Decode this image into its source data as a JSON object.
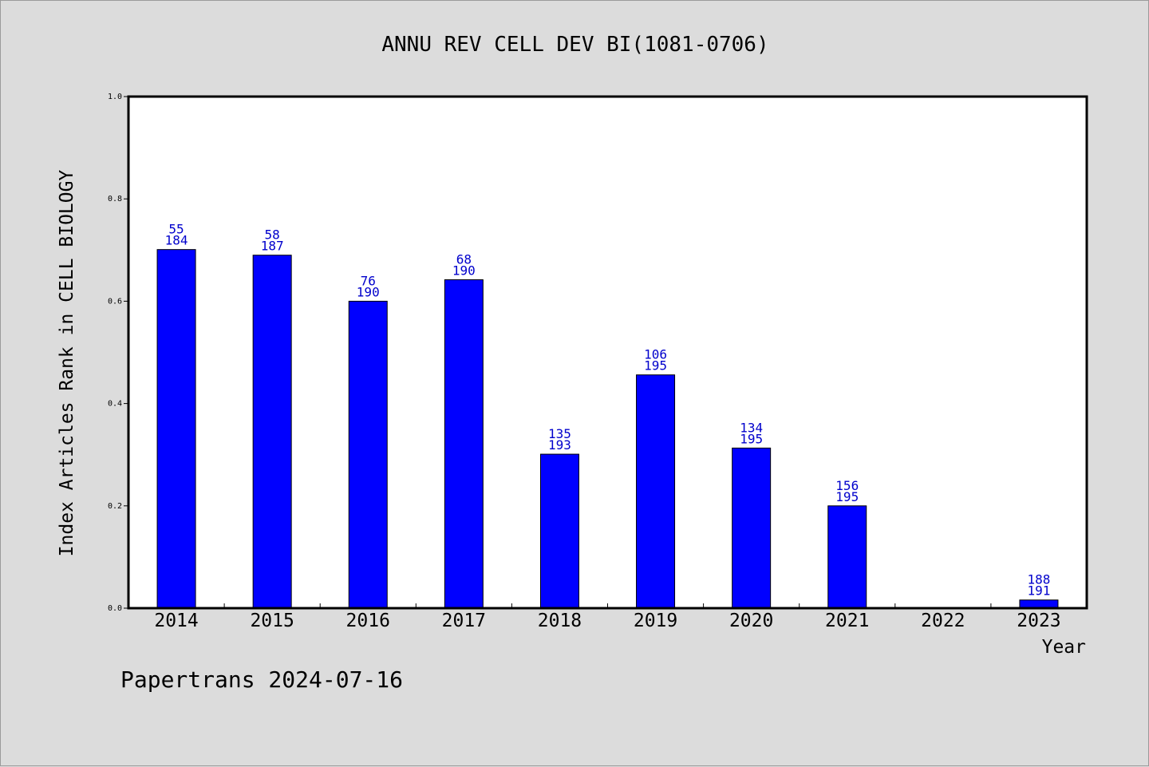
{
  "chart_data": {
    "type": "bar",
    "title": "ANNU REV CELL DEV BI(1081-0706)",
    "xlabel": "Year",
    "ylabel": "Index Articles Rank in CELL BIOLOGY",
    "ylim": [
      0,
      1.0
    ],
    "y_ticks": [
      "0.0",
      "0.2",
      "0.4",
      "0.6",
      "0.8",
      "1.0"
    ],
    "categories": [
      "2014",
      "2015",
      "2016",
      "2017",
      "2018",
      "2019",
      "2020",
      "2021",
      "2022",
      "2023"
    ],
    "values": [
      0.701,
      0.69,
      0.6,
      0.642,
      0.301,
      0.456,
      0.313,
      0.2,
      null,
      0.016
    ],
    "rank_labels": [
      "55",
      "58",
      "76",
      "68",
      "135",
      "106",
      "134",
      "156",
      "",
      "188"
    ],
    "total_labels": [
      "184",
      "187",
      "190",
      "190",
      "193",
      "195",
      "195",
      "195",
      "",
      "191"
    ],
    "bar_color": "#0000ff",
    "label_color": "#0000cc",
    "grid": false,
    "legend": "none"
  },
  "footer": "Papertrans 2024-07-16"
}
